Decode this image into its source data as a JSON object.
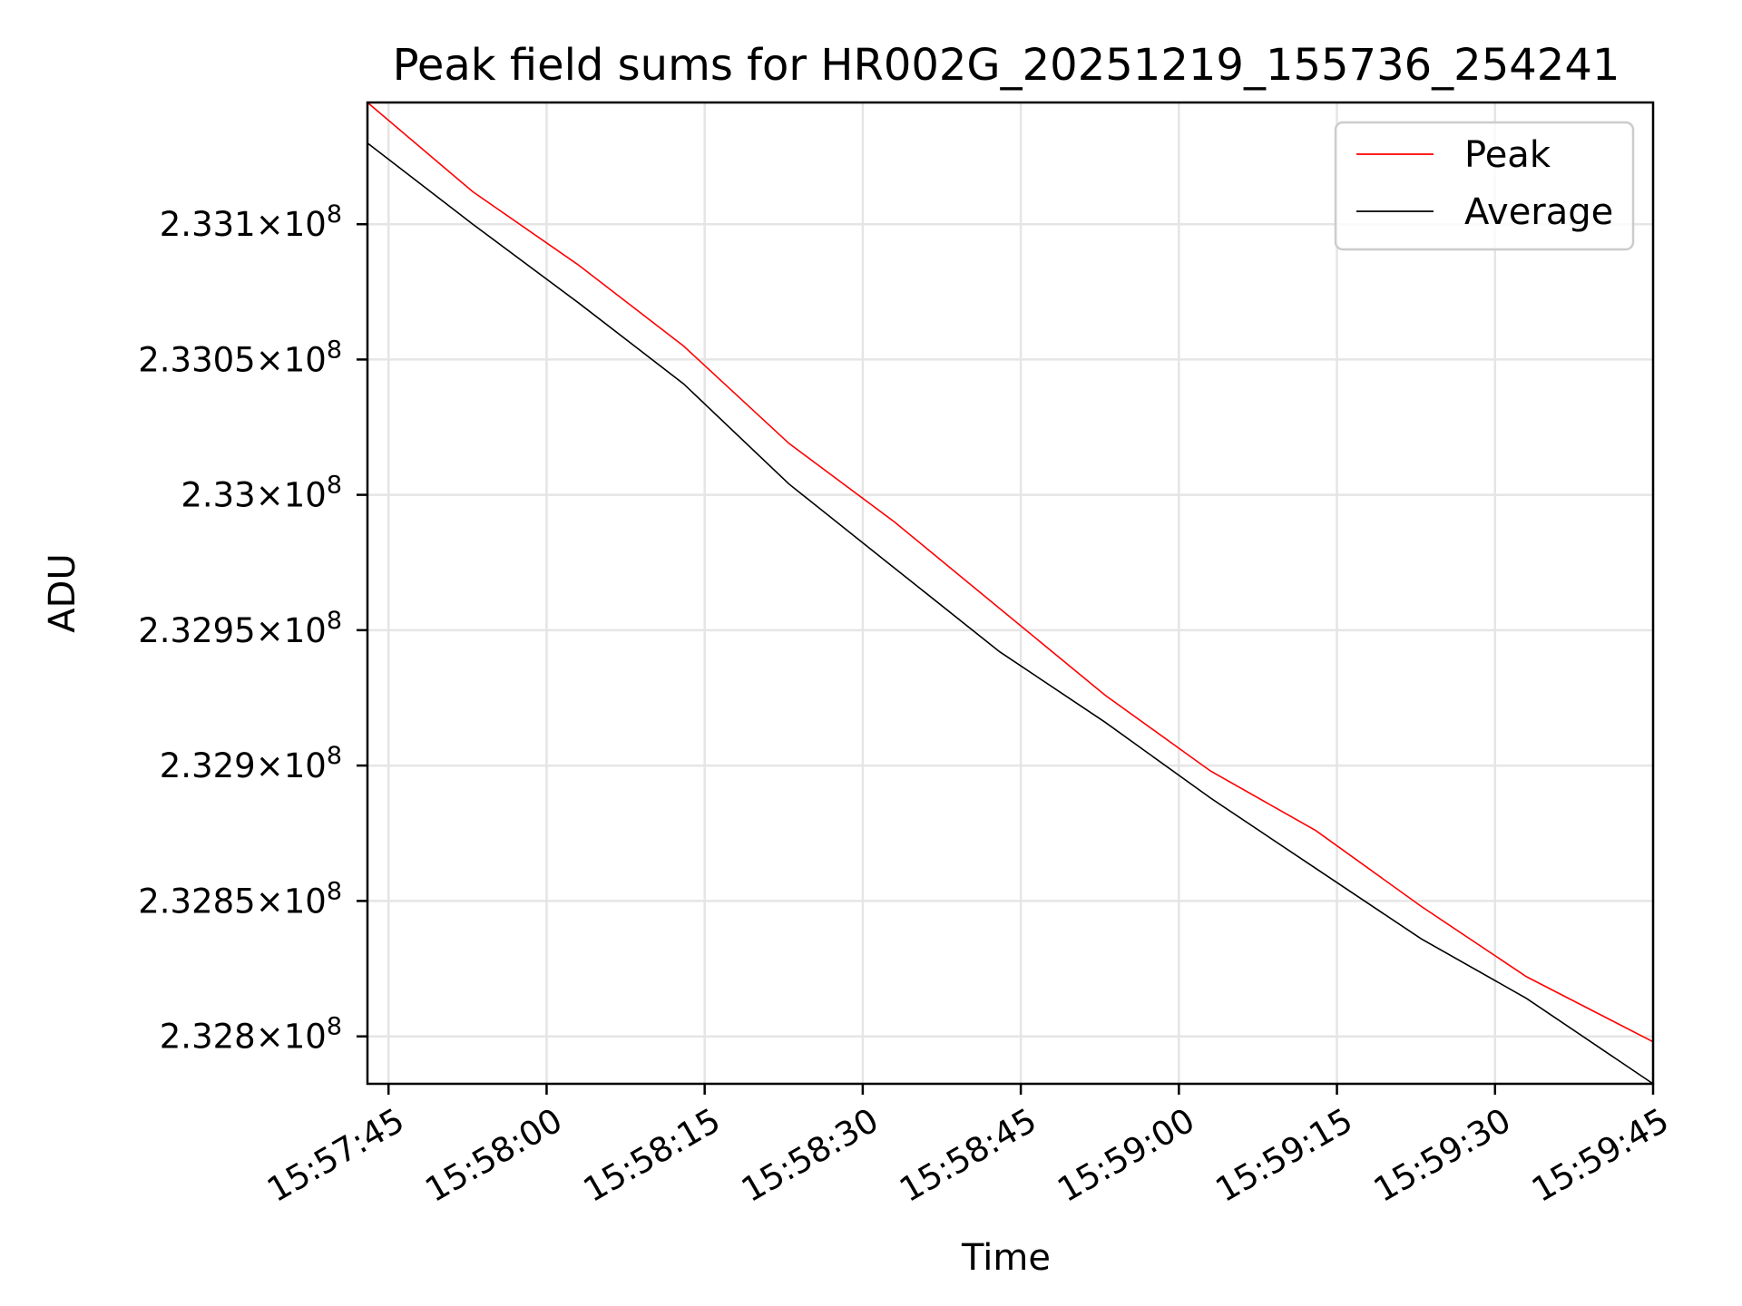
{
  "chart_data": {
    "type": "line",
    "title": "Peak field sums for HR002G_20251219_155736_254241",
    "xlabel": "Time",
    "ylabel": "ADU",
    "x_ticks": [
      "15:57:45",
      "15:58:00",
      "15:58:15",
      "15:58:30",
      "15:58:45",
      "15:59:00",
      "15:59:15",
      "15:59:30",
      "15:59:45"
    ],
    "y_ticks": [
      {
        "value": 232800000,
        "mantissa": "2.328",
        "base": "10",
        "exponent": "8"
      },
      {
        "value": 232850000,
        "mantissa": "2.3285",
        "base": "10",
        "exponent": "8"
      },
      {
        "value": 232900000,
        "mantissa": "2.329",
        "base": "10",
        "exponent": "8"
      },
      {
        "value": 232950000,
        "mantissa": "2.3295",
        "base": "10",
        "exponent": "8"
      },
      {
        "value": 233000000,
        "mantissa": "2.33",
        "base": "10",
        "exponent": "8"
      },
      {
        "value": 233050000,
        "mantissa": "2.3305",
        "base": "10",
        "exponent": "8"
      },
      {
        "value": 233100000,
        "mantissa": "2.331",
        "base": "10",
        "exponent": "8"
      }
    ],
    "xlim": [
      "15:57:43",
      "15:59:45"
    ],
    "ylim": [
      232782500,
      233145000
    ],
    "yscale": "log",
    "grid": true,
    "legend_position": "top-right",
    "series": [
      {
        "name": "Peak",
        "color": "#ff0000",
        "x": [
          "15:57:43",
          "15:57:53",
          "15:58:03",
          "15:58:13",
          "15:58:23",
          "15:58:33",
          "15:58:43",
          "15:58:53",
          "15:59:03",
          "15:59:13",
          "15:59:23",
          "15:59:33",
          "15:59:45"
        ],
        "values": [
          233145000,
          233112000,
          233085000,
          233055000,
          233019000,
          232990000,
          232958000,
          232926000,
          232898000,
          232876000,
          232848000,
          232822000,
          232798000
        ]
      },
      {
        "name": "Average",
        "color": "#000000",
        "x": [
          "15:57:43",
          "15:57:53",
          "15:58:03",
          "15:58:13",
          "15:58:23",
          "15:58:33",
          "15:58:43",
          "15:58:53",
          "15:59:03",
          "15:59:13",
          "15:59:23",
          "15:59:33",
          "15:59:45"
        ],
        "values": [
          233130000,
          233100000,
          233071000,
          233041000,
          233004000,
          232973000,
          232942000,
          232916000,
          232888000,
          232862000,
          232836000,
          232814000,
          232782500
        ]
      }
    ]
  }
}
